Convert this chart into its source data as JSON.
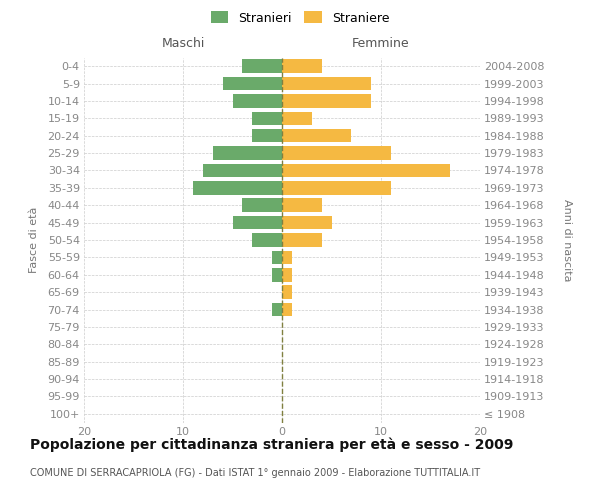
{
  "age_groups": [
    "100+",
    "95-99",
    "90-94",
    "85-89",
    "80-84",
    "75-79",
    "70-74",
    "65-69",
    "60-64",
    "55-59",
    "50-54",
    "45-49",
    "40-44",
    "35-39",
    "30-34",
    "25-29",
    "20-24",
    "15-19",
    "10-14",
    "5-9",
    "0-4"
  ],
  "birth_years": [
    "≤ 1908",
    "1909-1913",
    "1914-1918",
    "1919-1923",
    "1924-1928",
    "1929-1933",
    "1934-1938",
    "1939-1943",
    "1944-1948",
    "1949-1953",
    "1954-1958",
    "1959-1963",
    "1964-1968",
    "1969-1973",
    "1974-1978",
    "1979-1983",
    "1984-1988",
    "1989-1993",
    "1994-1998",
    "1999-2003",
    "2004-2008"
  ],
  "males": [
    0,
    0,
    0,
    0,
    0,
    0,
    1,
    0,
    1,
    1,
    3,
    5,
    4,
    9,
    8,
    7,
    3,
    3,
    5,
    6,
    4
  ],
  "females": [
    0,
    0,
    0,
    0,
    0,
    0,
    1,
    1,
    1,
    1,
    4,
    5,
    4,
    11,
    17,
    11,
    7,
    3,
    9,
    9,
    4
  ],
  "male_color": "#6aaa6a",
  "female_color": "#f5b942",
  "center_line_color": "#808040",
  "background_color": "#ffffff",
  "grid_color": "#cccccc",
  "title": "Popolazione per cittadinanza straniera per età e sesso - 2009",
  "subtitle": "COMUNE DI SERRACAPRIOLA (FG) - Dati ISTAT 1° gennaio 2009 - Elaborazione TUTTITALIA.IT",
  "ylabel_left": "Fasce di età",
  "ylabel_right": "Anni di nascita",
  "label_maschi": "Maschi",
  "label_femmine": "Femmine",
  "legend_males": "Stranieri",
  "legend_females": "Straniere",
  "xlim": 20,
  "tick_fontsize": 8,
  "title_fontsize": 10,
  "subtitle_fontsize": 7
}
